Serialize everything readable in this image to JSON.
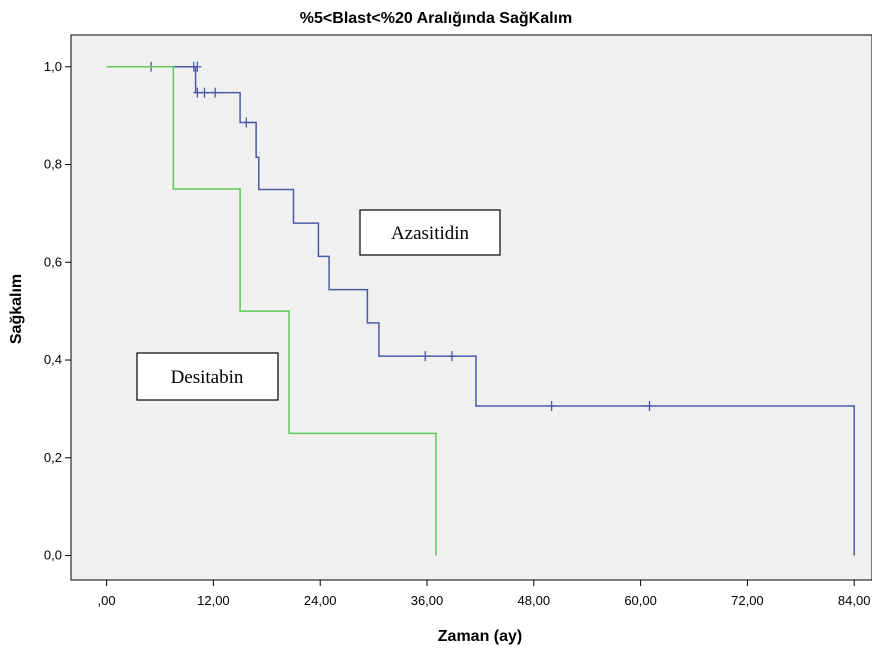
{
  "chart_data": {
    "type": "line",
    "step": true,
    "title": "%5<Blast<%20 Aralığında SağKalım",
    "xlabel": "Zaman (ay)",
    "ylabel": "Sağkalım",
    "xlim": [
      -4,
      86
    ],
    "ylim": [
      -0.05,
      1.065
    ],
    "x_ticks": [
      0,
      12,
      24,
      36,
      48,
      60,
      72,
      84
    ],
    "x_tick_labels": [
      ",00",
      "12,00",
      "24,00",
      "36,00",
      "48,00",
      "60,00",
      "72,00",
      "84,00"
    ],
    "y_ticks": [
      0,
      0.2,
      0.4,
      0.6,
      0.8,
      1.0
    ],
    "y_tick_labels": [
      "0,0",
      "0,2",
      "0,4",
      "0,6",
      "0,8",
      "1,0"
    ],
    "grid": false,
    "background": "#f0f0f0",
    "series": [
      {
        "name": "Azasitidin",
        "color": "#4b5aa6",
        "steps": [
          [
            0,
            1.0
          ],
          [
            10,
            0.947
          ],
          [
            15,
            0.886
          ],
          [
            16.8,
            0.815
          ],
          [
            17.1,
            0.749
          ],
          [
            21,
            0.68
          ],
          [
            23.8,
            0.612
          ],
          [
            25,
            0.544
          ],
          [
            29.3,
            0.476
          ],
          [
            30.6,
            0.408
          ],
          [
            41.5,
            0.306
          ],
          [
            84,
            0.306
          ],
          [
            84,
            0.0
          ]
        ],
        "censored": [
          [
            5,
            1.0
          ],
          [
            9.8,
            1.0
          ],
          [
            10.2,
            1.0
          ],
          [
            10.2,
            0.947
          ],
          [
            11,
            0.947
          ],
          [
            12.2,
            0.947
          ],
          [
            15.7,
            0.886
          ],
          [
            35.8,
            0.408
          ],
          [
            38.8,
            0.408
          ],
          [
            50,
            0.306
          ],
          [
            61,
            0.306
          ]
        ]
      },
      {
        "name": "Desitabin",
        "color": "#5cc85c",
        "steps": [
          [
            0,
            1.0
          ],
          [
            7.5,
            0.75
          ],
          [
            15,
            0.5
          ],
          [
            20.5,
            0.25
          ],
          [
            37,
            0.25
          ],
          [
            37,
            0.0
          ]
        ],
        "censored": []
      }
    ],
    "annotations": [
      {
        "text": "Azasitidin",
        "series": 0
      },
      {
        "text": "Desitabin",
        "series": 1
      }
    ]
  }
}
